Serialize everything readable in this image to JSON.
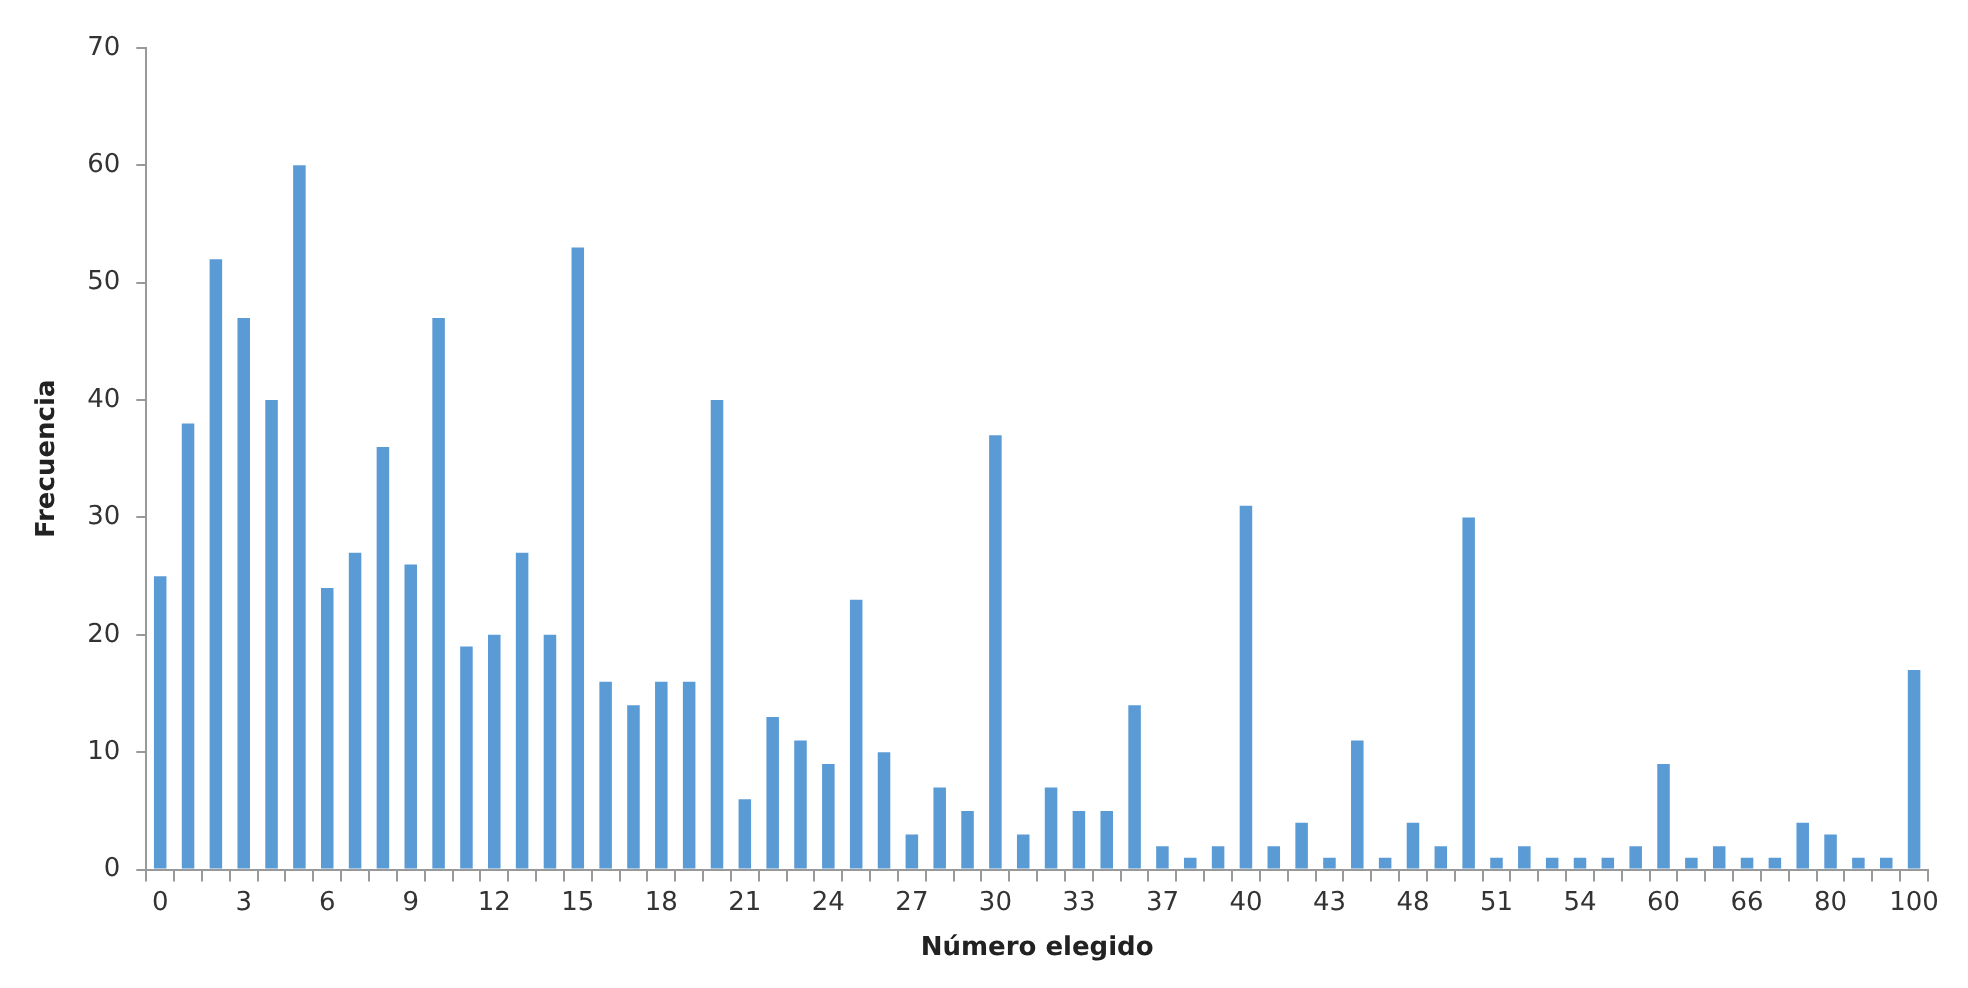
{
  "chart_data": {
    "type": "bar",
    "xlabel": "Número elegido",
    "ylabel": "Frecuencia",
    "categories": [
      "0",
      null,
      null,
      "3",
      null,
      null,
      "6",
      null,
      null,
      "9",
      null,
      null,
      "12",
      null,
      null,
      "15",
      null,
      null,
      "18",
      null,
      null,
      "21",
      null,
      null,
      "24",
      null,
      null,
      "27",
      null,
      null,
      "30",
      null,
      null,
      "33",
      null,
      null,
      "37",
      null,
      null,
      "40",
      null,
      null,
      "43",
      null,
      null,
      "48",
      null,
      null,
      "51",
      null,
      null,
      "54",
      null,
      null,
      "60",
      null,
      null,
      "66",
      null,
      null,
      "80",
      null,
      null,
      "100"
    ],
    "values": [
      25,
      38,
      52,
      47,
      40,
      60,
      24,
      27,
      36,
      26,
      47,
      19,
      20,
      27,
      20,
      53,
      16,
      14,
      16,
      16,
      40,
      6,
      13,
      11,
      9,
      23,
      10,
      3,
      7,
      5,
      37,
      3,
      7,
      5,
      5,
      14,
      2,
      1,
      2,
      31,
      2,
      4,
      1,
      11,
      1,
      4,
      2,
      30,
      1,
      2,
      1,
      1,
      1,
      2,
      9,
      1,
      2,
      1,
      1,
      4,
      3,
      1,
      1,
      17
    ],
    "color": "#5b9bd5",
    "ylim": [
      0,
      70
    ],
    "yticks": [
      0,
      10,
      20,
      30,
      40,
      50,
      60,
      70
    ],
    "grid": false,
    "legend": false
  }
}
